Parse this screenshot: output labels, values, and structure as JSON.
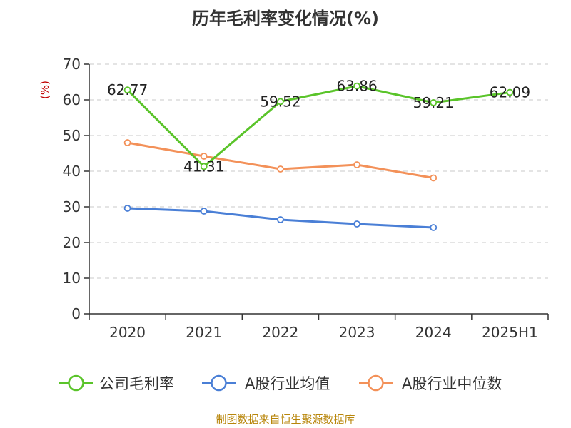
{
  "chart_data": {
    "type": "line",
    "title": "历年毛利率变化情况(%)",
    "ylabel": "(%)",
    "xlabel": "",
    "categories": [
      "2020",
      "2021",
      "2022",
      "2023",
      "2024",
      "2025H1"
    ],
    "ylim": [
      0,
      70
    ],
    "yticks": [
      "0",
      "10",
      "20",
      "30",
      "40",
      "50",
      "60",
      "70"
    ],
    "grid": true,
    "legend_position": "bottom",
    "series": [
      {
        "name": "公司毛利率",
        "color": "#5ac42a",
        "values": [
          62.77,
          41.31,
          59.52,
          63.86,
          59.21,
          62.09
        ],
        "labels": [
          "62.77",
          "41.31",
          "59.52",
          "63.86",
          "59.21",
          "62.09"
        ]
      },
      {
        "name": "A股行业均值",
        "color": "#4a7fd6",
        "values": [
          29.6,
          28.8,
          26.4,
          25.2,
          24.2,
          null
        ]
      },
      {
        "name": "A股行业中位数",
        "color": "#f39159",
        "values": [
          48.0,
          44.2,
          40.6,
          41.8,
          38.1,
          null
        ]
      }
    ]
  },
  "footer": {
    "source": "制图数据来自恒生聚源数据库"
  }
}
